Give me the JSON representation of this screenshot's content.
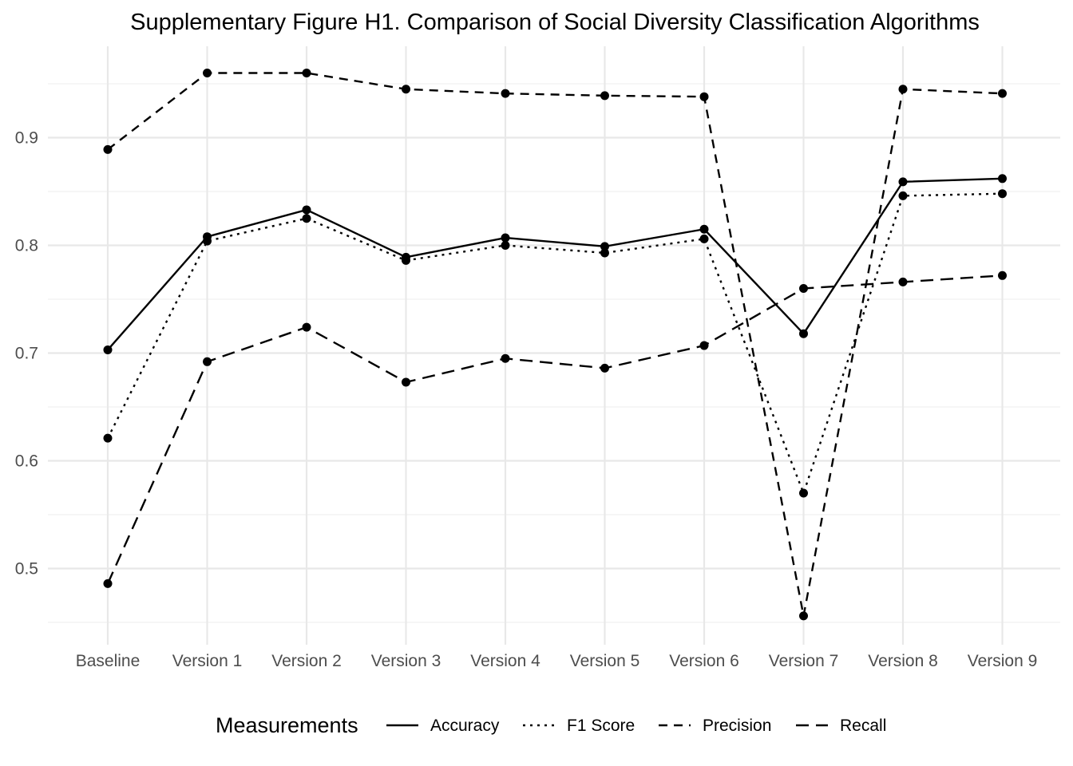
{
  "chart_data": {
    "type": "line",
    "title": "Supplementary Figure H1. Comparison of Social Diversity Classification Algorithms",
    "xlabel": "",
    "ylabel": "",
    "categories": [
      "Baseline",
      "Version 1",
      "Version 2",
      "Version 3",
      "Version 4",
      "Version 5",
      "Version 6",
      "Version 7",
      "Version 8",
      "Version 9"
    ],
    "ylim": [
      0.44,
      0.98
    ],
    "yticks": [
      "0.5",
      "0.6",
      "0.7",
      "0.8",
      "0.9"
    ],
    "grid": true,
    "legend": {
      "title": "Measurements",
      "position": "bottom"
    },
    "series": [
      {
        "name": "Accuracy",
        "line_style": "solid",
        "values": [
          0.703,
          0.808,
          0.833,
          0.789,
          0.807,
          0.799,
          0.815,
          0.718,
          0.859,
          0.862
        ]
      },
      {
        "name": "F1 Score",
        "line_style": "dotted",
        "values": [
          0.621,
          0.804,
          0.825,
          0.786,
          0.8,
          0.793,
          0.806,
          0.57,
          0.846,
          0.848
        ]
      },
      {
        "name": "Precision",
        "line_style": "dashed",
        "values": [
          0.889,
          0.96,
          0.96,
          0.945,
          0.941,
          0.939,
          0.938,
          0.456,
          0.945,
          0.941
        ]
      },
      {
        "name": "Recall",
        "line_style": "longdash",
        "values": [
          0.486,
          0.692,
          0.724,
          0.673,
          0.695,
          0.686,
          0.707,
          0.76,
          0.766,
          0.772
        ]
      }
    ],
    "colors": {
      "line": "#000000",
      "grid": "#ebebeb",
      "tick_text": "#4d4d4d"
    }
  }
}
